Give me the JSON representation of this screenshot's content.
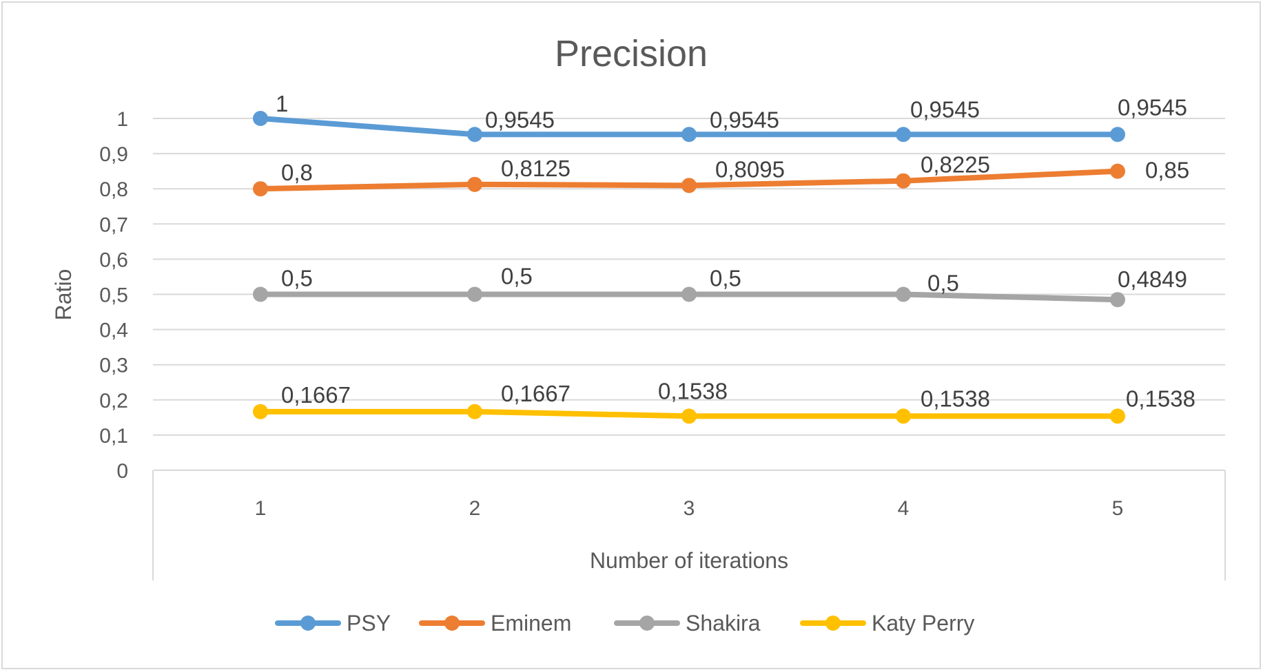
{
  "chart_data": {
    "type": "line",
    "title": "Precision",
    "xlabel": "Number of iterations",
    "ylabel": "Ratio",
    "x": [
      "1",
      "2",
      "3",
      "4",
      "5"
    ],
    "ylim": [
      0,
      1
    ],
    "y_ticks": [
      "0",
      "0,1",
      "0,2",
      "0,3",
      "0,4",
      "0,5",
      "0,6",
      "0,7",
      "0,8",
      "0,9",
      "1"
    ],
    "grid": true,
    "legend_position": "bottom",
    "series": [
      {
        "name": "PSY",
        "color": "#5b9bd5",
        "values": [
          1,
          0.9545,
          0.9545,
          0.9545,
          0.9545
        ],
        "labels": [
          "1",
          "0,9545",
          "0,9545",
          "0,9545",
          "0,9545"
        ]
      },
      {
        "name": "Eminem",
        "color": "#ed7d31",
        "values": [
          0.8,
          0.8125,
          0.8095,
          0.8225,
          0.85
        ],
        "labels": [
          "0,8",
          "0,8125",
          "0,8095",
          "0,8225",
          "0,85"
        ]
      },
      {
        "name": "Shakira",
        "color": "#a5a5a5",
        "values": [
          0.5,
          0.5,
          0.5,
          0.5,
          0.4849
        ],
        "labels": [
          "0,5",
          "0,5",
          "0,5",
          "0,5",
          "0,4849"
        ]
      },
      {
        "name": "Katy Perry",
        "color": "#ffc000",
        "values": [
          0.1667,
          0.1667,
          0.1538,
          0.1538,
          0.1538
        ],
        "labels": [
          "0,1667",
          "0,1667",
          "0,1538",
          "0,1538",
          "0,1538"
        ]
      }
    ]
  }
}
